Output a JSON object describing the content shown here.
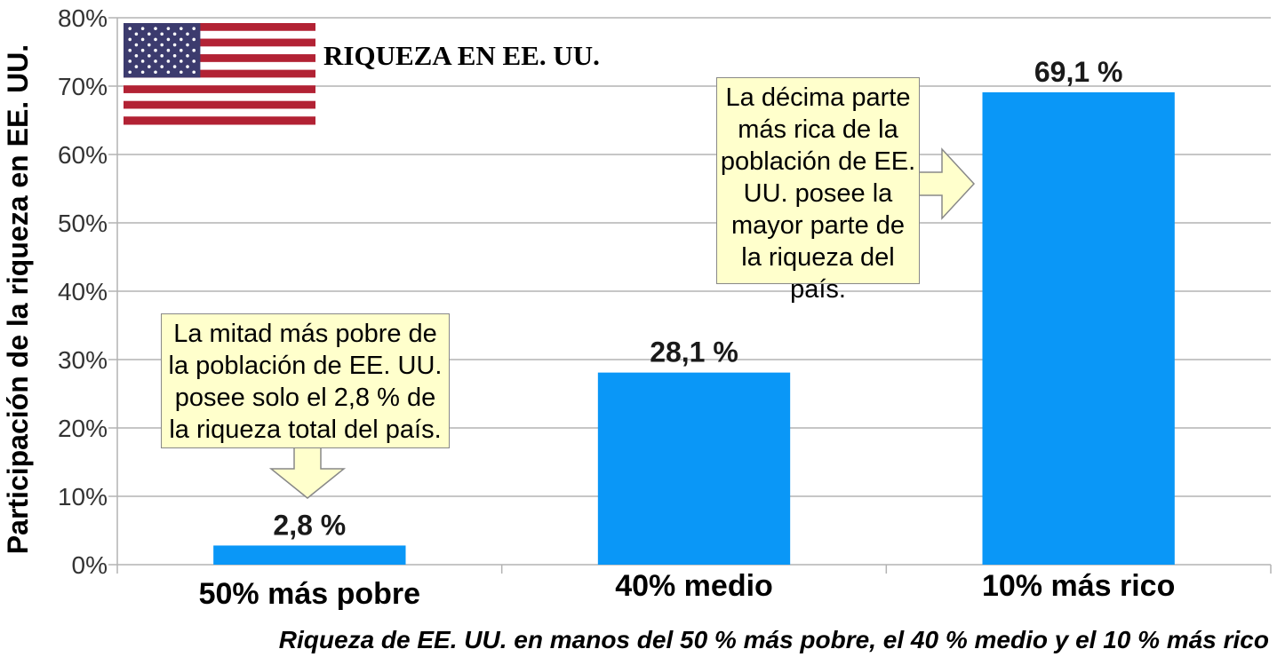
{
  "chart_data": {
    "type": "bar",
    "title": "RIQUEZA EN EE. UU.",
    "subtitle": "Riqueza de EE. UU. en manos del 50 % más pobre, el 40 % medio y el 10 % más rico",
    "ylabel": "Participación de la riqueza en EE. UU.",
    "xlabel": "",
    "categories": [
      "50% más pobre",
      "40% medio",
      "10% más rico"
    ],
    "values": [
      2.8,
      28.1,
      69.1
    ],
    "data_labels": [
      "2,8 %",
      "28,1 %",
      "69,1 %"
    ],
    "ylim": [
      0,
      80
    ],
    "yticks": [
      0,
      10,
      20,
      30,
      40,
      50,
      60,
      70,
      80
    ],
    "ytick_labels": [
      "0%",
      "10%",
      "20%",
      "30%",
      "40%",
      "50%",
      "60%",
      "70%",
      "80%"
    ],
    "grid": true,
    "bar_color": "#0a97f7",
    "annotations": [
      {
        "text": "La mitad más pobre de la población de EE. UU. posee solo el 2,8 % de la riqueza total del país."
      },
      {
        "text": "La décima parte más rica de la población de EE. UU. posee la mayor parte de la riqueza del país."
      }
    ]
  },
  "colors": {
    "grid": "#b3b3b3",
    "note_bg": "#ffffcc",
    "note_border": "#888888"
  },
  "icons": {
    "flag": "us-flag-icon"
  }
}
